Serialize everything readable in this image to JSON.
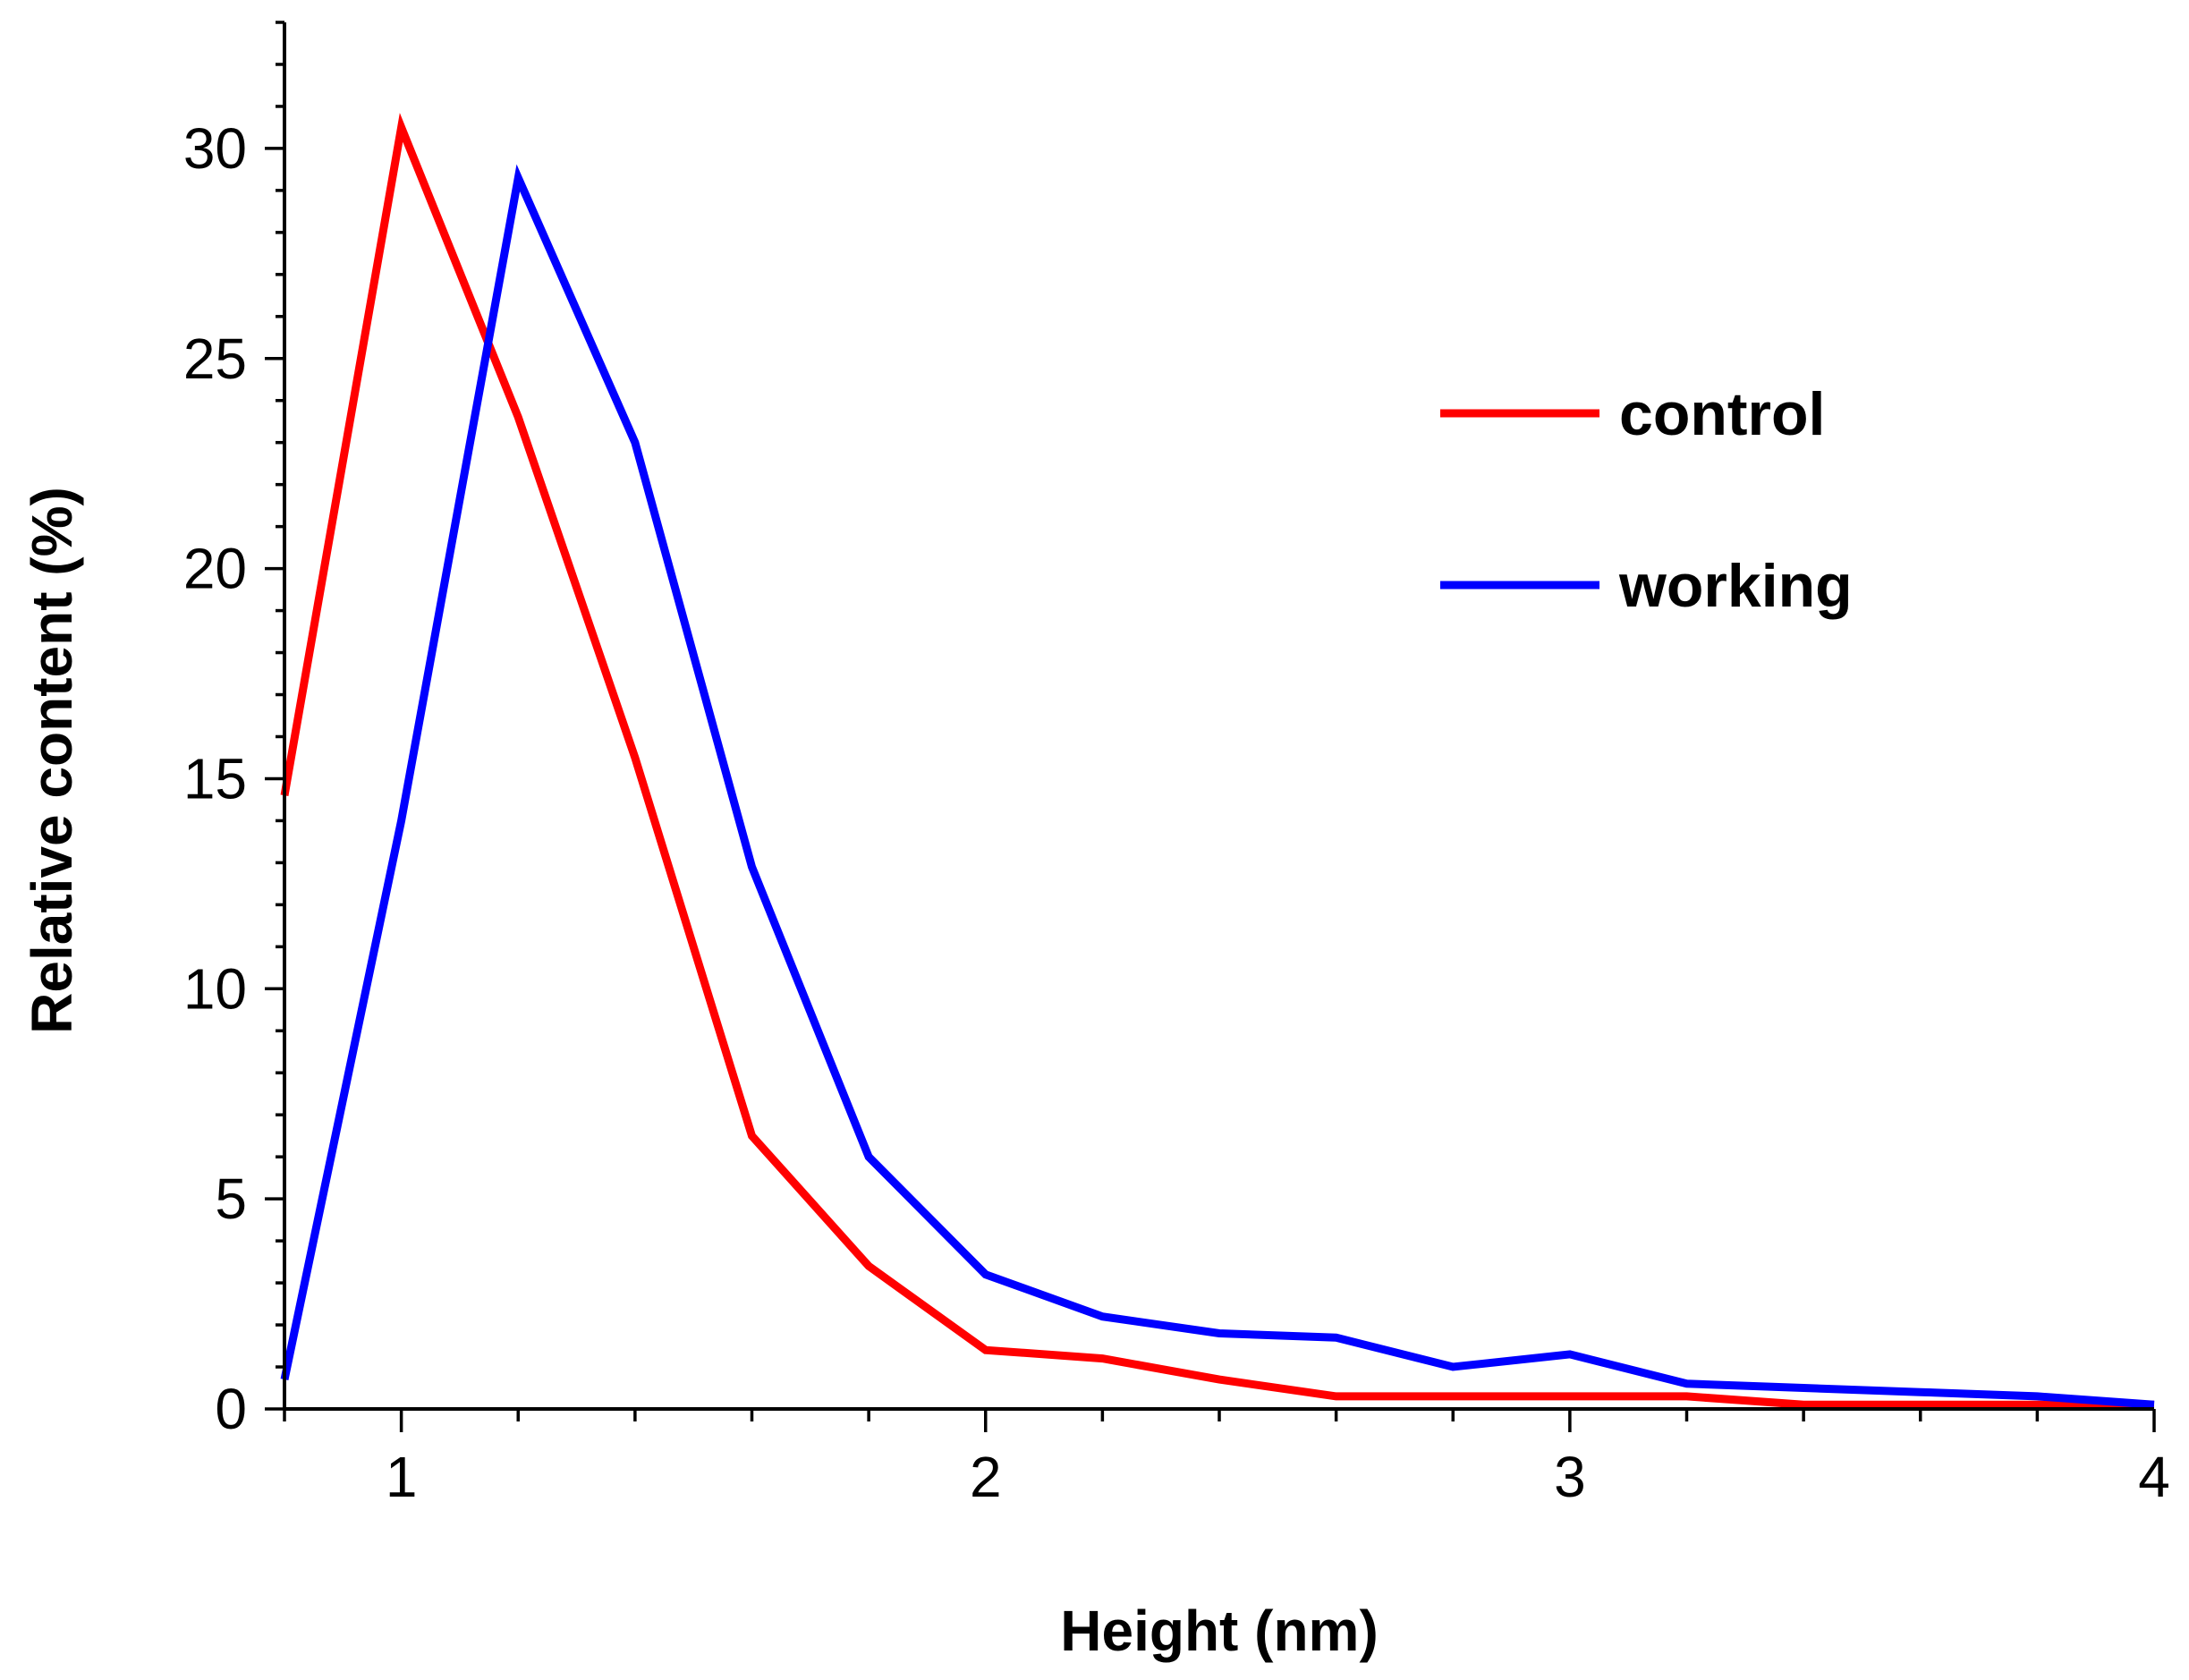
{
  "chart_data": {
    "type": "line",
    "title": "",
    "xlabel": "Height (nm)",
    "ylabel": "Relative content (%)",
    "xlim": [
      0.8,
      4.0
    ],
    "ylim": [
      0,
      33
    ],
    "x_ticks": [
      1,
      2,
      3,
      4
    ],
    "y_ticks": [
      0,
      5,
      10,
      15,
      20,
      25,
      30
    ],
    "x_minor_step": 0.2,
    "y_minor_step": 1,
    "legend_position": "top-right",
    "grid": false,
    "series": [
      {
        "name": "control",
        "color": "#ff0000",
        "x": [
          0.8,
          1.0,
          1.2,
          1.4,
          1.6,
          1.8,
          2.0,
          2.2,
          2.4,
          2.6,
          2.8,
          3.0,
          3.2,
          3.4,
          3.6,
          3.8,
          4.0
        ],
        "y": [
          14.6,
          30.5,
          23.6,
          15.5,
          6.5,
          3.4,
          1.4,
          1.2,
          0.7,
          0.3,
          0.3,
          0.3,
          0.3,
          0.1,
          0.1,
          0.1,
          0.1
        ]
      },
      {
        "name": "working",
        "color": "#0000ff",
        "x": [
          0.8,
          1.0,
          1.2,
          1.4,
          1.6,
          1.8,
          2.0,
          2.2,
          2.4,
          2.6,
          2.8,
          3.0,
          3.2,
          3.4,
          3.6,
          3.8,
          4.0
        ],
        "y": [
          0.7,
          14.0,
          29.3,
          23.0,
          12.9,
          6.0,
          3.2,
          2.2,
          1.8,
          1.7,
          1.0,
          1.3,
          0.6,
          0.5,
          0.4,
          0.3,
          0.1
        ]
      }
    ]
  }
}
